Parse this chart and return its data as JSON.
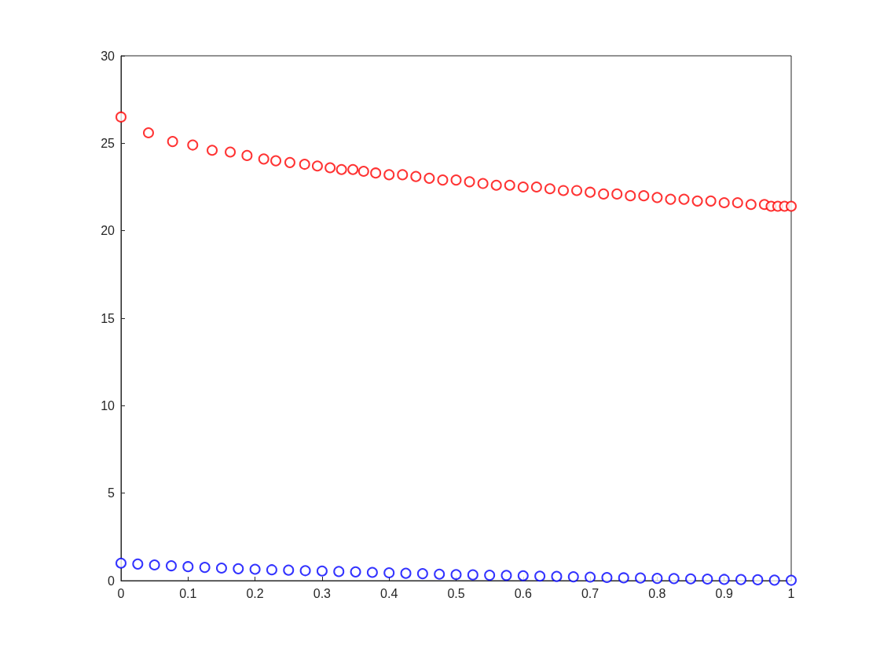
{
  "chart_data": {
    "type": "scatter",
    "marker": "circle",
    "grid": false,
    "xlim": [
      0,
      1
    ],
    "ylim": [
      0,
      30
    ],
    "xticks": [
      0,
      0.1,
      0.2,
      0.3,
      0.4,
      0.5,
      0.6,
      0.7,
      0.8,
      0.9,
      1
    ],
    "yticks": [
      0,
      5,
      10,
      15,
      20,
      25,
      30
    ],
    "series": [
      {
        "color": "#ff0000",
        "x": [
          0,
          0.041,
          0.077,
          0.107,
          0.136,
          0.163,
          0.188,
          0.213,
          0.231,
          0.252,
          0.274,
          0.293,
          0.312,
          0.329,
          0.346,
          0.362,
          0.38,
          0.4,
          0.42,
          0.44,
          0.46,
          0.48,
          0.5,
          0.52,
          0.54,
          0.56,
          0.58,
          0.6,
          0.62,
          0.64,
          0.66,
          0.68,
          0.7,
          0.72,
          0.74,
          0.76,
          0.78,
          0.8,
          0.82,
          0.84,
          0.86,
          0.88,
          0.9,
          0.92,
          0.94,
          0.96,
          0.97,
          0.98,
          0.99,
          1
        ],
        "values": [
          26.5,
          25.6,
          25.1,
          24.9,
          24.6,
          24.5,
          24.3,
          24.1,
          24.0,
          23.9,
          23.8,
          23.7,
          23.6,
          23.5,
          23.5,
          23.4,
          23.3,
          23.2,
          23.2,
          23.1,
          23.0,
          22.9,
          22.9,
          22.8,
          22.7,
          22.6,
          22.6,
          22.5,
          22.5,
          22.4,
          22.3,
          22.3,
          22.2,
          22.1,
          22.1,
          22.0,
          22.0,
          21.9,
          21.8,
          21.8,
          21.7,
          21.7,
          21.6,
          21.6,
          21.5,
          21.5,
          21.4,
          21.4,
          21.4,
          21.4
        ]
      },
      {
        "color": "#0000ff",
        "x": [
          0,
          0.025,
          0.05,
          0.075,
          0.1,
          0.125,
          0.15,
          0.175,
          0.2,
          0.225,
          0.25,
          0.275,
          0.3,
          0.325,
          0.35,
          0.375,
          0.4,
          0.425,
          0.45,
          0.475,
          0.5,
          0.525,
          0.55,
          0.575,
          0.6,
          0.625,
          0.65,
          0.675,
          0.7,
          0.725,
          0.75,
          0.775,
          0.8,
          0.825,
          0.85,
          0.875,
          0.9,
          0.925,
          0.95,
          0.975,
          1
        ],
        "values": [
          1.0,
          0.95,
          0.9,
          0.85,
          0.8,
          0.76,
          0.72,
          0.68,
          0.65,
          0.62,
          0.6,
          0.57,
          0.55,
          0.52,
          0.5,
          0.47,
          0.45,
          0.42,
          0.4,
          0.37,
          0.35,
          0.33,
          0.31,
          0.3,
          0.28,
          0.26,
          0.24,
          0.22,
          0.2,
          0.18,
          0.16,
          0.15,
          0.13,
          0.12,
          0.1,
          0.09,
          0.07,
          0.06,
          0.05,
          0.03,
          0.02
        ]
      }
    ]
  }
}
